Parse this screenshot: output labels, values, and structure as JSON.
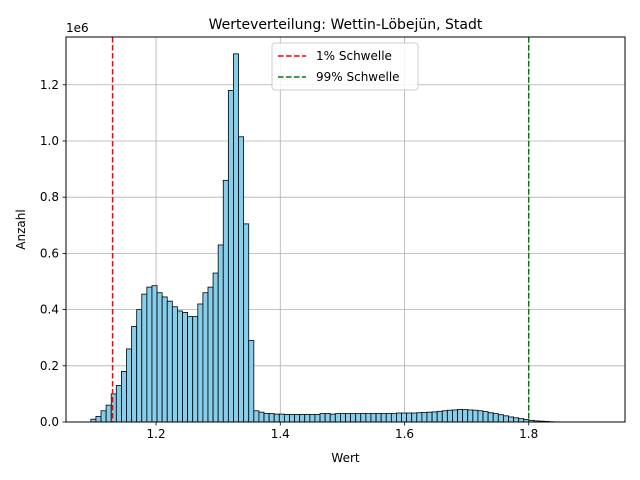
{
  "chart_data": {
    "type": "bar",
    "title": "Werteverteilung: Wettin-Löbejün, Stadt",
    "xlabel": "Wert",
    "ylabel": "Anzahl",
    "y_offset_label": "1e6",
    "xlim": [
      1.055,
      1.955
    ],
    "ylim": [
      0,
      1.37
    ],
    "x_ticks": [
      1.2,
      1.4,
      1.6,
      1.8
    ],
    "x_tick_labels": [
      "1.2",
      "1.4",
      "1.6",
      "1.8"
    ],
    "y_ticks": [
      0,
      0.2,
      0.4,
      0.6,
      0.8,
      1.0,
      1.2
    ],
    "y_tick_labels": [
      "0.0",
      "0.2",
      "0.4",
      "0.6",
      "0.8",
      "1.0",
      "1.2"
    ],
    "grid": true,
    "legend_position": "upper center",
    "bar_color": "#87CEEB",
    "bin_start": 1.095,
    "bin_width": 0.0082,
    "values": [
      0.01,
      0.02,
      0.04,
      0.06,
      0.1,
      0.13,
      0.18,
      0.26,
      0.34,
      0.4,
      0.455,
      0.48,
      0.485,
      0.46,
      0.445,
      0.43,
      0.41,
      0.395,
      0.39,
      0.375,
      0.375,
      0.42,
      0.46,
      0.48,
      0.53,
      0.63,
      0.86,
      1.18,
      1.31,
      1.015,
      0.705,
      0.29,
      0.04,
      0.035,
      0.03,
      0.03,
      0.028,
      0.028,
      0.027,
      0.027,
      0.027,
      0.027,
      0.027,
      0.027,
      0.027,
      0.03,
      0.03,
      0.028,
      0.03,
      0.03,
      0.03,
      0.03,
      0.03,
      0.03,
      0.03,
      0.03,
      0.03,
      0.03,
      0.03,
      0.03,
      0.032,
      0.032,
      0.032,
      0.032,
      0.033,
      0.034,
      0.035,
      0.036,
      0.038,
      0.04,
      0.042,
      0.043,
      0.045,
      0.044,
      0.043,
      0.042,
      0.04,
      0.037,
      0.033,
      0.03,
      0.026,
      0.022,
      0.018,
      0.015,
      0.012,
      0.009,
      0.006,
      0.004,
      0.003,
      0.002,
      0.001,
      0.0005
    ],
    "thresholds": [
      {
        "name": "1% Schwelle",
        "x": 1.13,
        "color": "#ff0000"
      },
      {
        "name": "99% Schwelle",
        "x": 1.8,
        "color": "#008000"
      }
    ]
  }
}
